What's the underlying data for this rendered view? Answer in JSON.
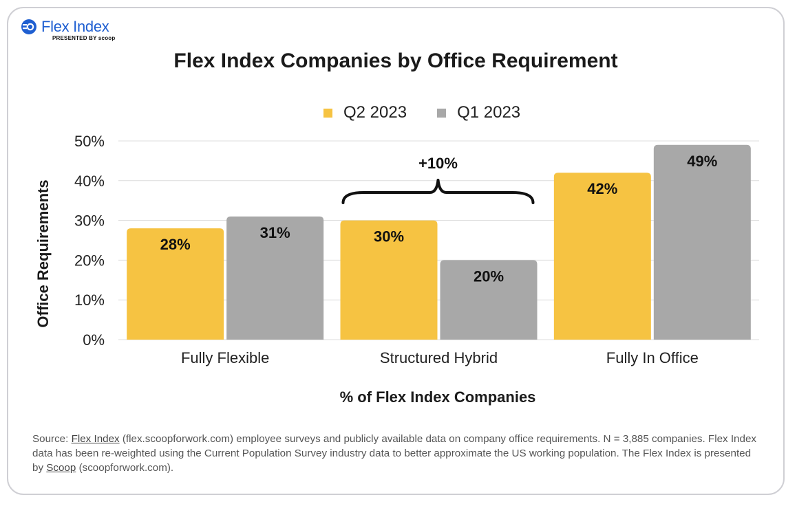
{
  "logo": {
    "name": "Flex Index",
    "tagline": "PRESENTED BY scoop"
  },
  "colors": {
    "q2": "#f6c342",
    "q1": "#a8a8a8",
    "brand": "#1f5fd1"
  },
  "chart_data": {
    "type": "bar",
    "title": "Flex Index Companies by Office Requirement",
    "xlabel": "% of Flex Index Companies",
    "ylabel": "Office Requirements",
    "ylim": [
      0,
      50
    ],
    "yticks": [
      "0%",
      "10%",
      "20%",
      "30%",
      "40%",
      "50%"
    ],
    "categories": [
      "Fully Flexible",
      "Structured Hybrid",
      "Fully In Office"
    ],
    "series": [
      {
        "name": "Q2 2023",
        "values": [
          28,
          30,
          42
        ],
        "labels": [
          "28%",
          "30%",
          "42%"
        ]
      },
      {
        "name": "Q1 2023",
        "values": [
          31,
          20,
          49
        ],
        "labels": [
          "31%",
          "20%",
          "49%"
        ]
      }
    ],
    "annotations": [
      {
        "text": "+10%",
        "category": "Structured Hybrid"
      }
    ],
    "grid": true,
    "legend": "top-center"
  },
  "footnote": {
    "prefix": "Source: ",
    "link1": "Flex Index",
    "middle": " (flex.scoopforwork.com) employee surveys and publicly available data on company office requirements. N = 3,885 companies. Flex Index data has been re-weighted using the Current Population Survey industry data to better approximate the US working population. The Flex Index is presented by ",
    "link2": "Scoop",
    "suffix": " (scoopforwork.com)."
  }
}
